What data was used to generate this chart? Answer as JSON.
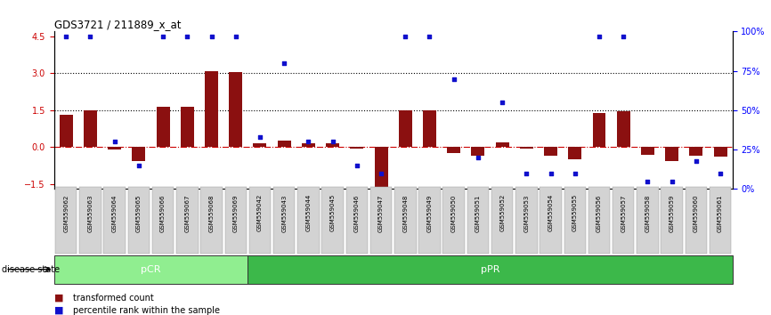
{
  "title": "GDS3721 / 211889_x_at",
  "categories": [
    "GSM559062",
    "GSM559063",
    "GSM559064",
    "GSM559065",
    "GSM559066",
    "GSM559067",
    "GSM559068",
    "GSM559069",
    "GSM559042",
    "GSM559043",
    "GSM559044",
    "GSM559045",
    "GSM559046",
    "GSM559047",
    "GSM559048",
    "GSM559049",
    "GSM559050",
    "GSM559051",
    "GSM559052",
    "GSM559053",
    "GSM559054",
    "GSM559055",
    "GSM559056",
    "GSM559057",
    "GSM559058",
    "GSM559059",
    "GSM559060",
    "GSM559061"
  ],
  "transformed_count": [
    1.3,
    1.5,
    -0.1,
    -0.55,
    1.65,
    1.65,
    3.1,
    3.05,
    0.15,
    0.25,
    0.15,
    0.15,
    -0.05,
    -1.6,
    1.5,
    1.5,
    -0.25,
    -0.35,
    0.2,
    -0.05,
    -0.35,
    -0.5,
    1.4,
    1.45,
    -0.3,
    -0.55,
    -0.35,
    -0.4
  ],
  "percentile_rank": [
    97,
    97,
    30,
    15,
    97,
    97,
    97,
    97,
    33,
    80,
    30,
    30,
    15,
    10,
    97,
    97,
    70,
    20,
    55,
    10,
    10,
    10,
    97,
    97,
    5,
    5,
    18,
    10
  ],
  "groups": [
    {
      "label": "pCR",
      "start": 0,
      "end": 7,
      "color": "#90EE90"
    },
    {
      "label": "pPR",
      "start": 8,
      "end": 27,
      "color": "#3CB84A"
    }
  ],
  "bar_color": "#8B1010",
  "dot_color": "#1010CC",
  "ylim_left": [
    -1.7,
    4.7
  ],
  "ylim_right": [
    0,
    100
  ],
  "yticks_left": [
    -1.5,
    0,
    1.5,
    3.0,
    4.5
  ],
  "yticks_right": [
    0,
    25,
    50,
    75,
    100
  ],
  "background_color": "#ffffff",
  "disease_state_label": "disease state",
  "legend_transformed": "transformed count",
  "legend_percentile": "percentile rank within the sample"
}
